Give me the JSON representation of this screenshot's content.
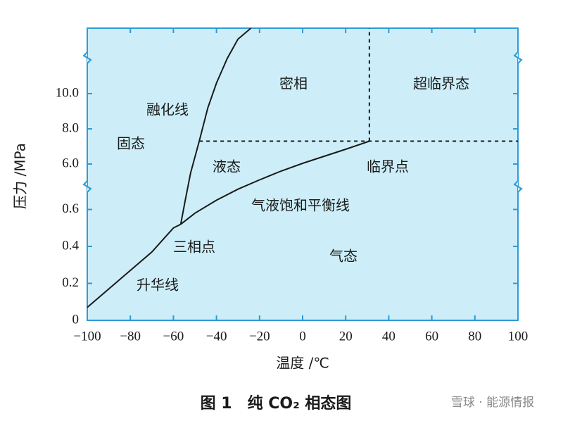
{
  "chart_data": {
    "type": "line",
    "title": "图 1　纯 CO₂ 相态图",
    "x_label": "温度 /℃",
    "y_label": "压力 /MPa",
    "watermark": "雪球 · 能源情报",
    "xlim": [
      -100,
      100
    ],
    "xticks": [
      {
        "value": -100,
        "label": "−100"
      },
      {
        "value": -80,
        "label": "−80"
      },
      {
        "value": -60,
        "label": "−60"
      },
      {
        "value": -40,
        "label": "−40"
      },
      {
        "value": -20,
        "label": "−20"
      },
      0,
      20,
      40,
      60,
      80,
      100
    ],
    "ylim": [
      0,
      13.72
    ],
    "y_break": [
      0.724,
      4.72
    ],
    "yticks": [
      0,
      0.2,
      0.4,
      0.6,
      {
        "value": 6,
        "label": "6.0"
      },
      {
        "value": 8,
        "label": "8.0"
      },
      {
        "value": 10,
        "label": "10.0"
      }
    ],
    "grid": false,
    "series": [
      {
        "name": "融化线",
        "color": "#1a1a1a",
        "x": [
          -56.6,
          -54.5,
          -52,
          -48,
          -44,
          -40,
          -35,
          -30,
          -24
        ],
        "values": [
          0.52,
          0.65,
          5.5,
          7.3,
          9.2,
          10.6,
          12,
          13.1,
          13.72
        ]
      },
      {
        "name": "气液饱和平衡线",
        "color": "#1a1a1a",
        "x": [
          -56.6,
          -50,
          -40,
          -30,
          -20,
          -10,
          0,
          10,
          20,
          31
        ],
        "values": [
          0.52,
          0.58,
          0.65,
          0.71,
          5.1,
          5.6,
          6.04,
          6.44,
          6.84,
          7.3
        ]
      },
      {
        "name": "升华线",
        "color": "#1a1a1a",
        "x": [
          -100,
          -90,
          -80,
          -70,
          -60,
          -56.6
        ],
        "values": [
          0.07,
          0.17,
          0.27,
          0.37,
          0.5,
          0.52
        ]
      }
    ],
    "critical_point": {
      "x": 31,
      "y": 7.3
    },
    "annotations": [
      "密相",
      "超临界态",
      "固态",
      "液态",
      "临界点",
      "三相点",
      "气态"
    ]
  }
}
